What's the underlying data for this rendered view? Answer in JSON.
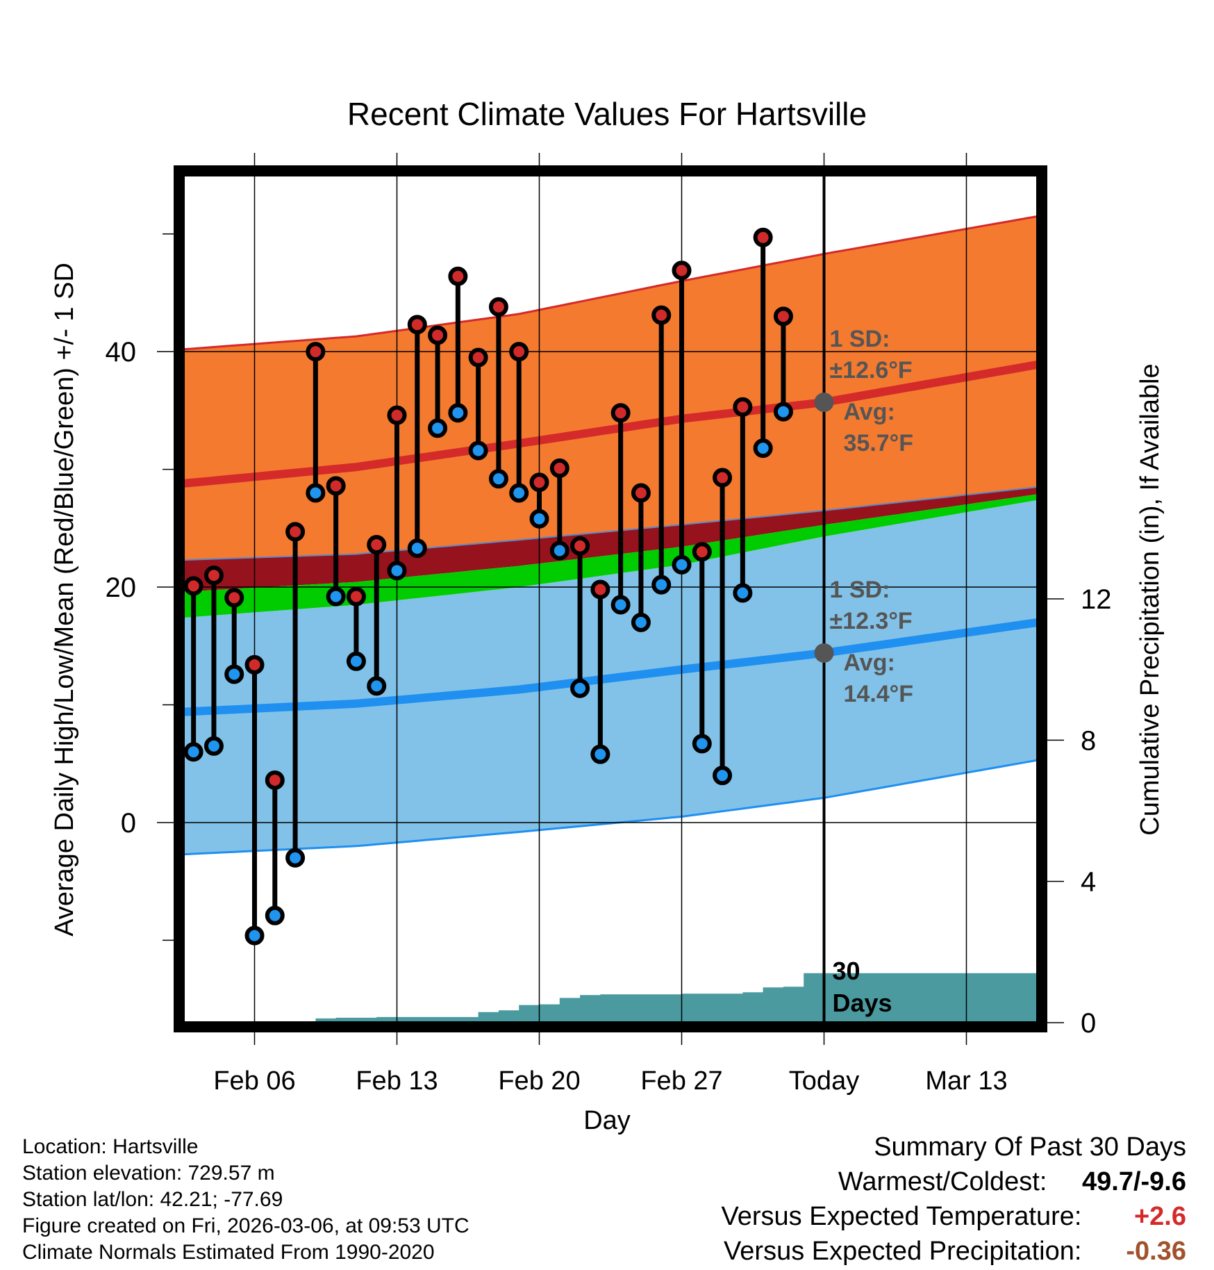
{
  "chart_data": {
    "type": "line",
    "title": "Recent Climate Values For Hartsville",
    "xlabel": "Day",
    "ylabel": "Average Daily High/Low/Mean (Red/Blue/Green) +/- 1 SD",
    "y2label": "Cumulative Precipitation (in), If Available",
    "x_tick_labels": [
      "Feb 06",
      "Feb 13",
      "Feb 20",
      "Feb 27",
      "Today",
      "Mar 13"
    ],
    "x_tick_days": [
      3,
      10,
      17,
      24,
      31,
      38
    ],
    "xlim": [
      -0.5,
      41.5
    ],
    "y_ticks": [
      0,
      20,
      40
    ],
    "ylim": [
      -17,
      55
    ],
    "y2_ticks": [
      0,
      4,
      8,
      12
    ],
    "y2lim": [
      0,
      24
    ],
    "today_day": 31,
    "grid": true,
    "normals": {
      "days": [
        -0.5,
        8,
        16,
        24,
        31,
        41.5
      ],
      "high_avg": [
        28.8,
        30.2,
        32.2,
        34.3,
        35.7,
        38.9
      ],
      "high_upper": [
        40.2,
        41.3,
        43.2,
        46.0,
        48.3,
        51.5
      ],
      "low_avg": [
        9.4,
        10.1,
        11.3,
        13.0,
        14.4,
        17.0
      ],
      "low_lower": [
        -2.7,
        -2.0,
        -0.8,
        0.5,
        2.1,
        5.3
      ],
      "mean_upper": [
        22.3,
        22.8,
        24.0,
        25.3,
        26.5,
        28.5
      ],
      "mean_lower": [
        17.4,
        18.5,
        20.0,
        21.9,
        24.3,
        27.4
      ],
      "high_label": [
        "1 SD:",
        "±12.6°F",
        "Avg:",
        "35.7°F"
      ],
      "low_label": [
        "1 SD:",
        "±12.3°F",
        "Avg:",
        "14.4°F"
      ]
    },
    "observed": {
      "days": [
        0,
        1,
        2,
        3,
        4,
        5,
        6,
        7,
        8,
        9,
        10,
        11,
        12,
        13,
        14,
        15,
        16,
        17,
        18,
        19,
        20,
        21,
        22,
        23,
        24,
        25,
        26,
        27,
        28,
        29
      ],
      "highs": [
        20.1,
        21.0,
        19.1,
        13.4,
        3.6,
        24.7,
        40.0,
        28.6,
        19.2,
        23.6,
        34.6,
        42.3,
        41.4,
        46.4,
        39.5,
        43.8,
        40.0,
        28.9,
        30.1,
        23.5,
        19.8,
        34.8,
        28.0,
        43.1,
        46.9,
        23.0,
        29.3,
        35.3,
        49.7,
        43.0
      ],
      "lows": [
        6.0,
        6.5,
        12.6,
        -9.6,
        -7.9,
        -3.0,
        28.0,
        19.2,
        13.7,
        11.6,
        21.4,
        23.3,
        33.5,
        34.8,
        31.6,
        29.2,
        28.0,
        25.8,
        23.1,
        11.4,
        5.8,
        18.5,
        17.0,
        20.2,
        21.9,
        6.7,
        4.0,
        19.5,
        31.8,
        34.9
      ]
    },
    "precip": {
      "label": [
        "30",
        "Days"
      ],
      "days": [
        -0.5,
        5,
        6,
        7,
        9,
        13,
        14,
        15,
        16,
        17,
        18,
        19,
        20,
        23,
        24,
        27,
        28,
        29,
        30,
        41.5
      ],
      "values": [
        0,
        0,
        0.12,
        0.14,
        0.16,
        0.16,
        0.3,
        0.35,
        0.5,
        0.52,
        0.7,
        0.78,
        0.8,
        0.8,
        0.82,
        0.86,
        1.0,
        1.02,
        1.4,
        1.4
      ]
    },
    "colors": {
      "high_band": "#f47a30",
      "high_line": "#d42a2a",
      "low_band": "#82c2e8",
      "low_line": "#1f8ff0",
      "mean_band": "#00cc00",
      "mean_upper_band": "#96121c",
      "precip": "#4a9aa0",
      "high_dot": "#d02a2a",
      "low_dot": "#1f95f0"
    }
  },
  "info": {
    "location": "Location: Hartsville",
    "elevation": "Station elevation: 729.57 m",
    "latlon": "Station lat/lon: 42.21; -77.69",
    "created": "Figure created on Fri, 2026-03-06, at 09:53 UTC",
    "normals": "Climate Normals Estimated From 1990-2020"
  },
  "summary": {
    "title": "Summary Of Past 30 Days",
    "warmest_label": "Warmest/Coldest:",
    "warmest_value": "49.7/-9.6",
    "temp_label": "Versus Expected Temperature:",
    "temp_value": "+2.6",
    "temp_color": "#d42a2a",
    "precip_label": "Versus Expected Precipitation:",
    "precip_value": "-0.36",
    "precip_color": "#a0522d"
  }
}
